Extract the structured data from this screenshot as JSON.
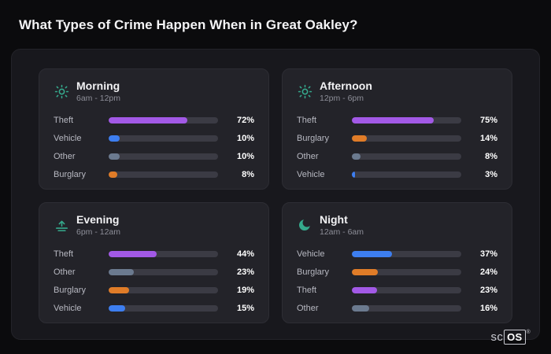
{
  "page": {
    "title": "What Types of Crime Happen When in Great Oakley?"
  },
  "brand": {
    "prefix": "sc",
    "boxed": "OS",
    "registered": "®"
  },
  "theme": {
    "background": "#0b0b0d",
    "panel": "#18181d",
    "card": "#232329",
    "track": "#3b3b44",
    "accent_icon": "#35a98c",
    "theft_color": "#a259e6",
    "vehicle_color": "#3d7ef0",
    "other_color": "#6b7a8f",
    "burglary_color": "#e07c28"
  },
  "chart_data": [
    {
      "type": "bar",
      "orientation": "horizontal",
      "title": "Morning",
      "subtitle": "6am - 12pm",
      "icon": "sun-icon",
      "categories": [
        "Theft",
        "Vehicle",
        "Other",
        "Burglary"
      ],
      "values": [
        72,
        10,
        10,
        8
      ],
      "value_labels": [
        "72%",
        "10%",
        "10%",
        "8%"
      ],
      "colors": [
        "#a259e6",
        "#3d7ef0",
        "#6b7a8f",
        "#e07c28"
      ],
      "xlim": [
        0,
        100
      ]
    },
    {
      "type": "bar",
      "orientation": "horizontal",
      "title": "Afternoon",
      "subtitle": "12pm - 6pm",
      "icon": "sun-icon",
      "categories": [
        "Theft",
        "Burglary",
        "Other",
        "Vehicle"
      ],
      "values": [
        75,
        14,
        8,
        3
      ],
      "value_labels": [
        "75%",
        "14%",
        "8%",
        "3%"
      ],
      "colors": [
        "#a259e6",
        "#e07c28",
        "#6b7a8f",
        "#3d7ef0"
      ],
      "xlim": [
        0,
        100
      ]
    },
    {
      "type": "bar",
      "orientation": "horizontal",
      "title": "Evening",
      "subtitle": "6pm - 12am",
      "icon": "sunset-icon",
      "categories": [
        "Theft",
        "Other",
        "Burglary",
        "Vehicle"
      ],
      "values": [
        44,
        23,
        19,
        15
      ],
      "value_labels": [
        "44%",
        "23%",
        "19%",
        "15%"
      ],
      "colors": [
        "#a259e6",
        "#6b7a8f",
        "#e07c28",
        "#3d7ef0"
      ],
      "xlim": [
        0,
        100
      ]
    },
    {
      "type": "bar",
      "orientation": "horizontal",
      "title": "Night",
      "subtitle": "12am - 6am",
      "icon": "moon-icon",
      "categories": [
        "Vehicle",
        "Burglary",
        "Theft",
        "Other"
      ],
      "values": [
        37,
        24,
        23,
        16
      ],
      "value_labels": [
        "37%",
        "24%",
        "23%",
        "16%"
      ],
      "colors": [
        "#3d7ef0",
        "#e07c28",
        "#a259e6",
        "#6b7a8f"
      ],
      "xlim": [
        0,
        100
      ]
    }
  ]
}
